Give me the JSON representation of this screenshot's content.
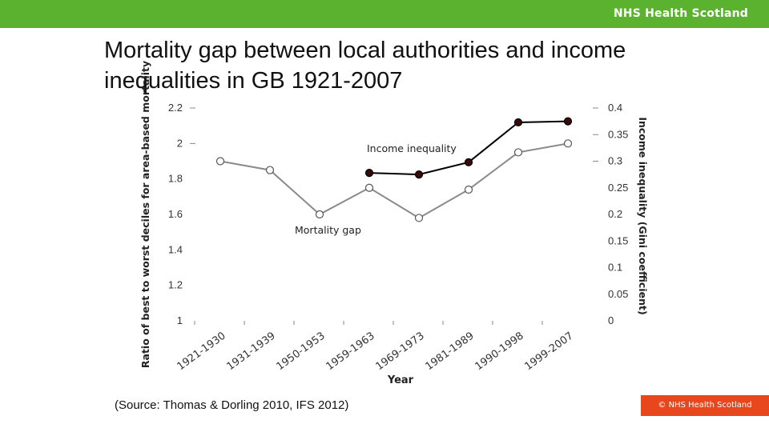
{
  "header": {
    "brand": "NHS Health Scotland"
  },
  "slide": {
    "title": "Mortality gap between local authorities and income inequalities in GB 1921-2007",
    "source": "(Source: Thomas & Dorling 2010, IFS 2012)",
    "footer_badge": "© NHS Health Scotland"
  },
  "colors": {
    "header_green": "#5bb22f",
    "footer_orange": "#e8461d",
    "mortality_line": "#8a8a8a",
    "income_line": "#000000",
    "income_marker": "#3a0a0a"
  },
  "chart_data": {
    "type": "line",
    "title": "",
    "xlabel": "Year",
    "ylabel": "Ratio of best to worst deciles for area-based mortality",
    "y2label": "Income inequality (Gini coefficient)",
    "categories": [
      "1921-1930",
      "1931-1939",
      "1950-1953",
      "1959-1963",
      "1969-1973",
      "1981-1989",
      "1990-1998",
      "1999-2007"
    ],
    "ylim": [
      1,
      2.2
    ],
    "y2lim": [
      0,
      0.4
    ],
    "yticks": [
      "1",
      "1.2",
      "1.4",
      "1.6",
      "1.8",
      "2",
      "2.2"
    ],
    "y2ticks": [
      "0",
      "0.05",
      "0.1",
      "0.15",
      "0.2",
      "0.25",
      "0.3",
      "0.35",
      "0.4"
    ],
    "grid": false,
    "series": [
      {
        "name": "Mortality gap",
        "axis": "left",
        "values": [
          1.9,
          1.85,
          1.6,
          1.75,
          1.58,
          1.74,
          1.95,
          2.0
        ]
      },
      {
        "name": "Income inequality",
        "axis": "right",
        "values": [
          null,
          null,
          null,
          0.278,
          0.275,
          0.298,
          0.373,
          0.375
        ]
      }
    ]
  }
}
